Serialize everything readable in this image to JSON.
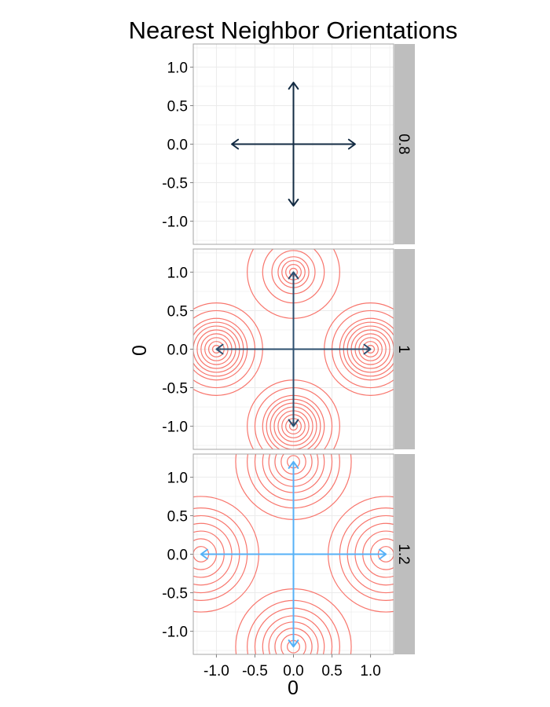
{
  "chart_data": {
    "type": "faceted vector field with contours",
    "title": "Nearest Neighbor Orientations",
    "xlabel": "0",
    "ylabel": "0",
    "xlim": [
      -1.3,
      1.3
    ],
    "ylim": [
      -1.3,
      1.3
    ],
    "x_ticks": [
      -1.0,
      -0.5,
      0.0,
      0.5,
      1.0
    ],
    "y_ticks": [
      -1.0,
      -0.5,
      0.0,
      0.5,
      1.0
    ],
    "x_tick_labels": [
      "-1.0",
      "-0.5",
      "0.0",
      "0.5",
      "1.0"
    ],
    "y_tick_labels": [
      "-1.0",
      "-0.5",
      "0.0",
      "0.5",
      "1.0"
    ],
    "grid": true,
    "colors": {
      "panel_background": "#ffffff",
      "panel_border": "#a6a6a6",
      "grid": "#ebebeb",
      "strip": "#bebebe",
      "contour": "#f8766d"
    },
    "facets": [
      {
        "label": "0.8",
        "arrow_length": 0.8,
        "arrow_color": "#132b43",
        "contours": []
      },
      {
        "label": "1",
        "arrow_length": 1.0,
        "arrow_color": "#2c4f6f",
        "contours": [
          {
            "center": [
              0,
              1.0
            ],
            "radii": [
              0.05,
              0.1,
              0.15,
              0.2,
              0.28,
              0.4,
              0.6
            ]
          },
          {
            "center": [
              0,
              -1.0
            ],
            "radii": [
              0.05,
              0.1,
              0.15,
              0.2,
              0.25,
              0.3,
              0.35,
              0.4,
              0.5,
              0.6
            ]
          },
          {
            "center": [
              1.0,
              0
            ],
            "radii": [
              0.05,
              0.1,
              0.15,
              0.2,
              0.25,
              0.3,
              0.35,
              0.4,
              0.5,
              0.6
            ]
          },
          {
            "center": [
              -1.0,
              0
            ],
            "radii": [
              0.05,
              0.1,
              0.15,
              0.2,
              0.25,
              0.3,
              0.35,
              0.4,
              0.5,
              0.6
            ]
          }
        ]
      },
      {
        "label": "1.2",
        "arrow_length": 1.2,
        "arrow_color": "#56b1f7",
        "contours": [
          {
            "center": [
              0,
              1.2
            ],
            "radii": [
              0.08,
              0.16,
              0.24,
              0.32,
              0.4,
              0.5,
              0.6,
              0.75
            ]
          },
          {
            "center": [
              0,
              -1.2
            ],
            "radii": [
              0.08,
              0.16,
              0.24,
              0.32,
              0.4,
              0.5,
              0.6,
              0.75
            ]
          },
          {
            "center": [
              1.2,
              0
            ],
            "radii": [
              0.1,
              0.2,
              0.3,
              0.4,
              0.5,
              0.6,
              0.75
            ]
          },
          {
            "center": [
              -1.2,
              0
            ],
            "radii": [
              0.1,
              0.2,
              0.3,
              0.4,
              0.5,
              0.6,
              0.75
            ]
          }
        ]
      }
    ]
  }
}
